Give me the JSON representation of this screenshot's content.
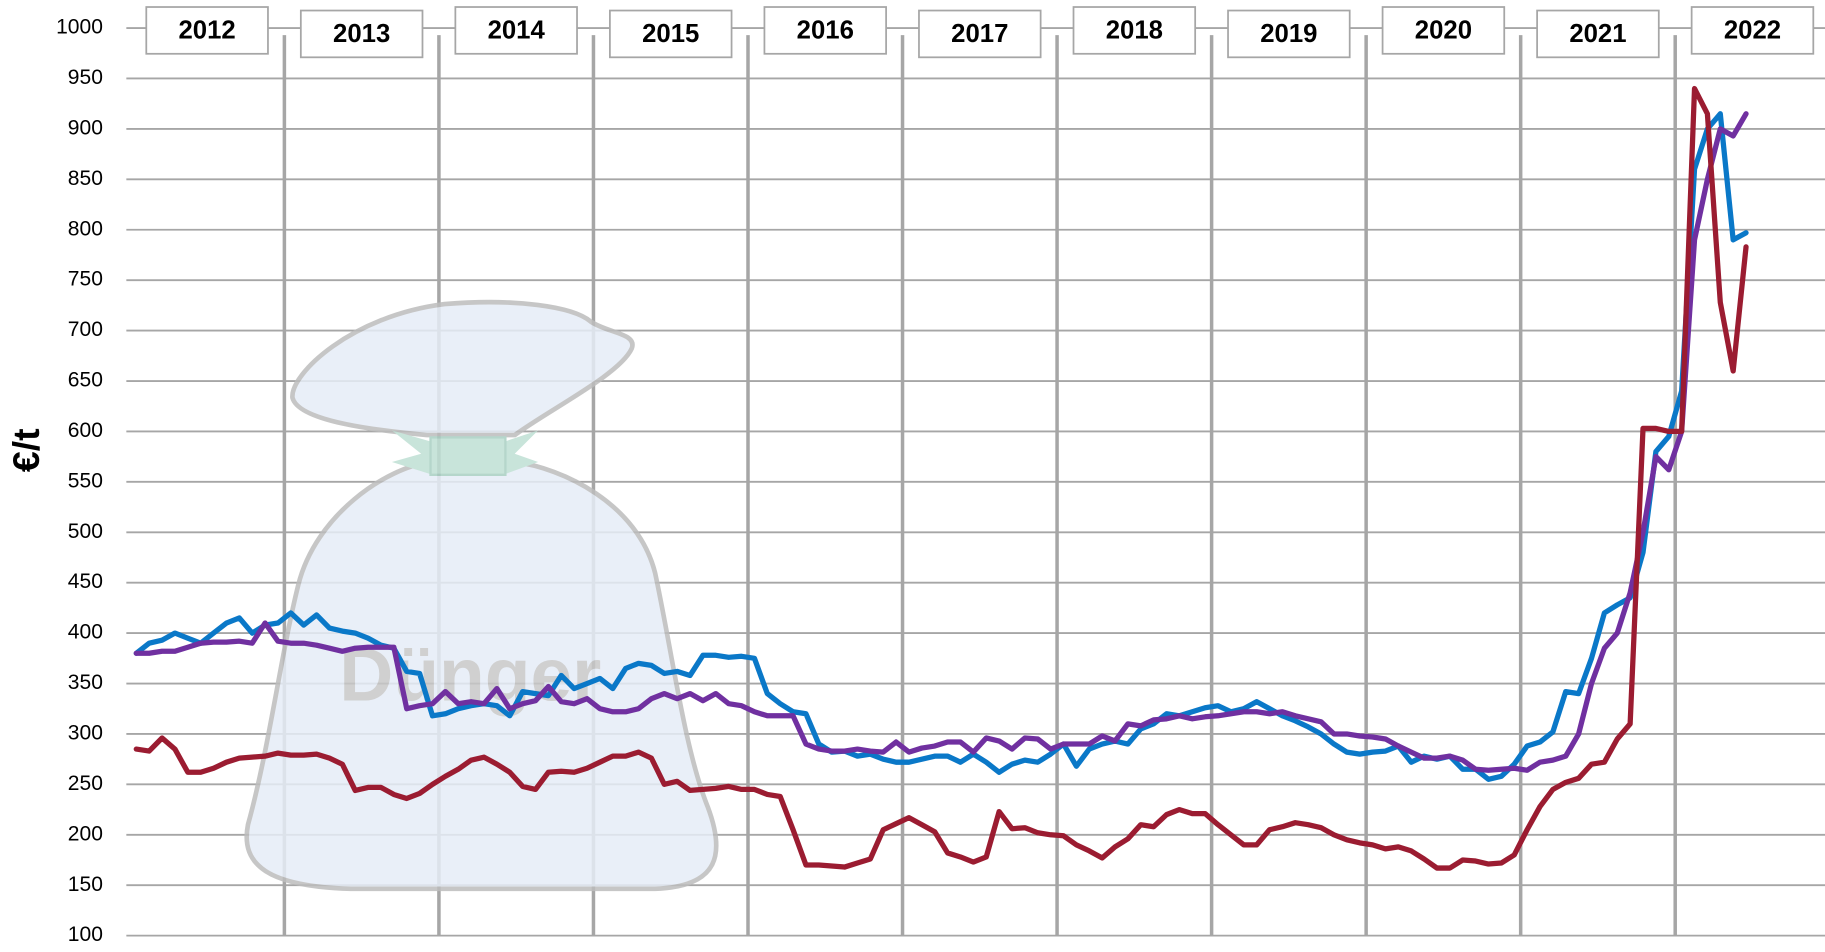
{
  "chart_data": {
    "type": "line",
    "y_label": "€/t",
    "watermark": "Dünger",
    "categories": [
      "2012",
      null,
      null,
      null,
      null,
      null,
      null,
      null,
      null,
      null,
      null,
      null,
      "2013",
      null,
      null,
      null,
      null,
      null,
      null,
      null,
      null,
      null,
      null,
      null,
      "2014",
      null,
      null,
      null,
      null,
      null,
      null,
      null,
      null,
      null,
      null,
      null,
      "2015",
      null,
      null,
      null,
      null,
      null,
      null,
      null,
      null,
      null,
      null,
      null,
      "2016",
      null,
      null,
      null,
      null,
      null,
      null,
      null,
      null,
      null,
      null,
      null,
      "2017",
      null,
      null,
      null,
      null,
      null,
      null,
      null,
      null,
      null,
      null,
      null,
      "2018",
      null,
      null,
      null,
      null,
      null,
      null,
      null,
      null,
      null,
      null,
      null,
      "2019",
      null,
      null,
      null,
      null,
      null,
      null,
      null,
      null,
      null,
      null,
      null,
      "2020",
      null,
      null,
      null,
      null,
      null,
      null,
      null,
      null,
      null,
      null,
      null,
      "2021",
      null,
      null,
      null,
      null,
      null,
      null,
      null,
      null,
      null,
      null,
      null,
      "2022",
      null,
      null,
      null,
      null,
      null
    ],
    "ylim": [
      100,
      1000
    ],
    "yticks": [
      100,
      150,
      200,
      250,
      300,
      350,
      400,
      450,
      500,
      550,
      600,
      650,
      700,
      750,
      800,
      850,
      900,
      950,
      1000
    ],
    "grid": true,
    "series": [
      {
        "color": "#0a78c8",
        "values": [
          380,
          390,
          393,
          400,
          395,
          390,
          400,
          410,
          415,
          400,
          408,
          410,
          420,
          408,
          418,
          405,
          402,
          400,
          395,
          388,
          385,
          362,
          360,
          318,
          320,
          325,
          328,
          330,
          328,
          318,
          342,
          340,
          338,
          358,
          345,
          350,
          355,
          345,
          365,
          370,
          368,
          360,
          362,
          358,
          378,
          378,
          376,
          377,
          375,
          340,
          330,
          322,
          320,
          290,
          282,
          283,
          278,
          280,
          275,
          272,
          272,
          275,
          278,
          278,
          272,
          280,
          272,
          262,
          270,
          274,
          272,
          280,
          290,
          268,
          285,
          290,
          293,
          290,
          305,
          310,
          320,
          318,
          322,
          326,
          328,
          322,
          325,
          332,
          325,
          318,
          313,
          307,
          300,
          290,
          282,
          280,
          282,
          283,
          288,
          272,
          278,
          275,
          278,
          265,
          265,
          255,
          258,
          270,
          288,
          292,
          302,
          342,
          340,
          375,
          420,
          428,
          435,
          480,
          580,
          595,
          640,
          860,
          900,
          915,
          790,
          797
        ]
      },
      {
        "color": "#7030a0",
        "values": [
          380,
          380,
          382,
          382,
          386,
          390,
          391,
          391,
          392,
          390,
          410,
          392,
          390,
          390,
          388,
          385,
          382,
          385,
          386,
          386,
          386,
          325,
          328,
          330,
          342,
          330,
          332,
          330,
          345,
          325,
          330,
          333,
          347,
          332,
          330,
          335,
          325,
          322,
          322,
          325,
          335,
          340,
          335,
          340,
          333,
          340,
          330,
          328,
          322,
          318,
          318,
          318,
          290,
          285,
          283,
          283,
          285,
          283,
          282,
          292,
          282,
          286,
          288,
          292,
          292,
          282,
          296,
          293,
          285,
          296,
          295,
          285,
          290,
          290,
          290,
          298,
          293,
          310,
          308,
          314,
          315,
          318,
          315,
          317,
          318,
          320,
          322,
          322,
          320,
          322,
          318,
          315,
          312,
          300,
          300,
          298,
          297,
          295,
          288,
          282,
          276,
          276,
          278,
          274,
          265,
          264,
          265,
          266,
          264,
          272,
          274,
          278,
          300,
          350,
          385,
          400,
          440,
          500,
          575,
          562,
          600,
          790,
          850,
          900,
          893,
          915
        ]
      },
      {
        "color": "#9b1c31",
        "values": [
          285,
          283,
          296,
          285,
          262,
          262,
          266,
          272,
          276,
          277,
          278,
          281,
          279,
          279,
          280,
          276,
          270,
          244,
          247,
          247,
          240,
          236,
          241,
          250,
          258,
          265,
          274,
          277,
          270,
          262,
          248,
          245,
          262,
          263,
          262,
          266,
          272,
          278,
          278,
          282,
          276,
          250,
          253,
          244,
          245,
          246,
          248,
          245,
          245,
          240,
          238,
          205,
          170,
          170,
          169,
          168,
          172,
          176,
          205,
          211,
          217,
          210,
          203,
          182,
          178,
          173,
          178,
          223,
          206,
          207,
          202,
          200,
          199,
          190,
          184,
          177,
          188,
          196,
          210,
          208,
          220,
          225,
          221,
          221,
          210,
          200,
          190,
          190,
          205,
          208,
          212,
          210,
          207,
          200,
          195,
          192,
          190,
          186,
          188,
          184,
          176,
          167,
          167,
          175,
          174,
          171,
          172,
          180,
          205,
          228,
          245,
          252,
          256,
          270,
          272,
          295,
          310,
          603,
          603,
          600,
          600,
          940,
          915,
          728,
          660,
          783
        ]
      }
    ]
  }
}
